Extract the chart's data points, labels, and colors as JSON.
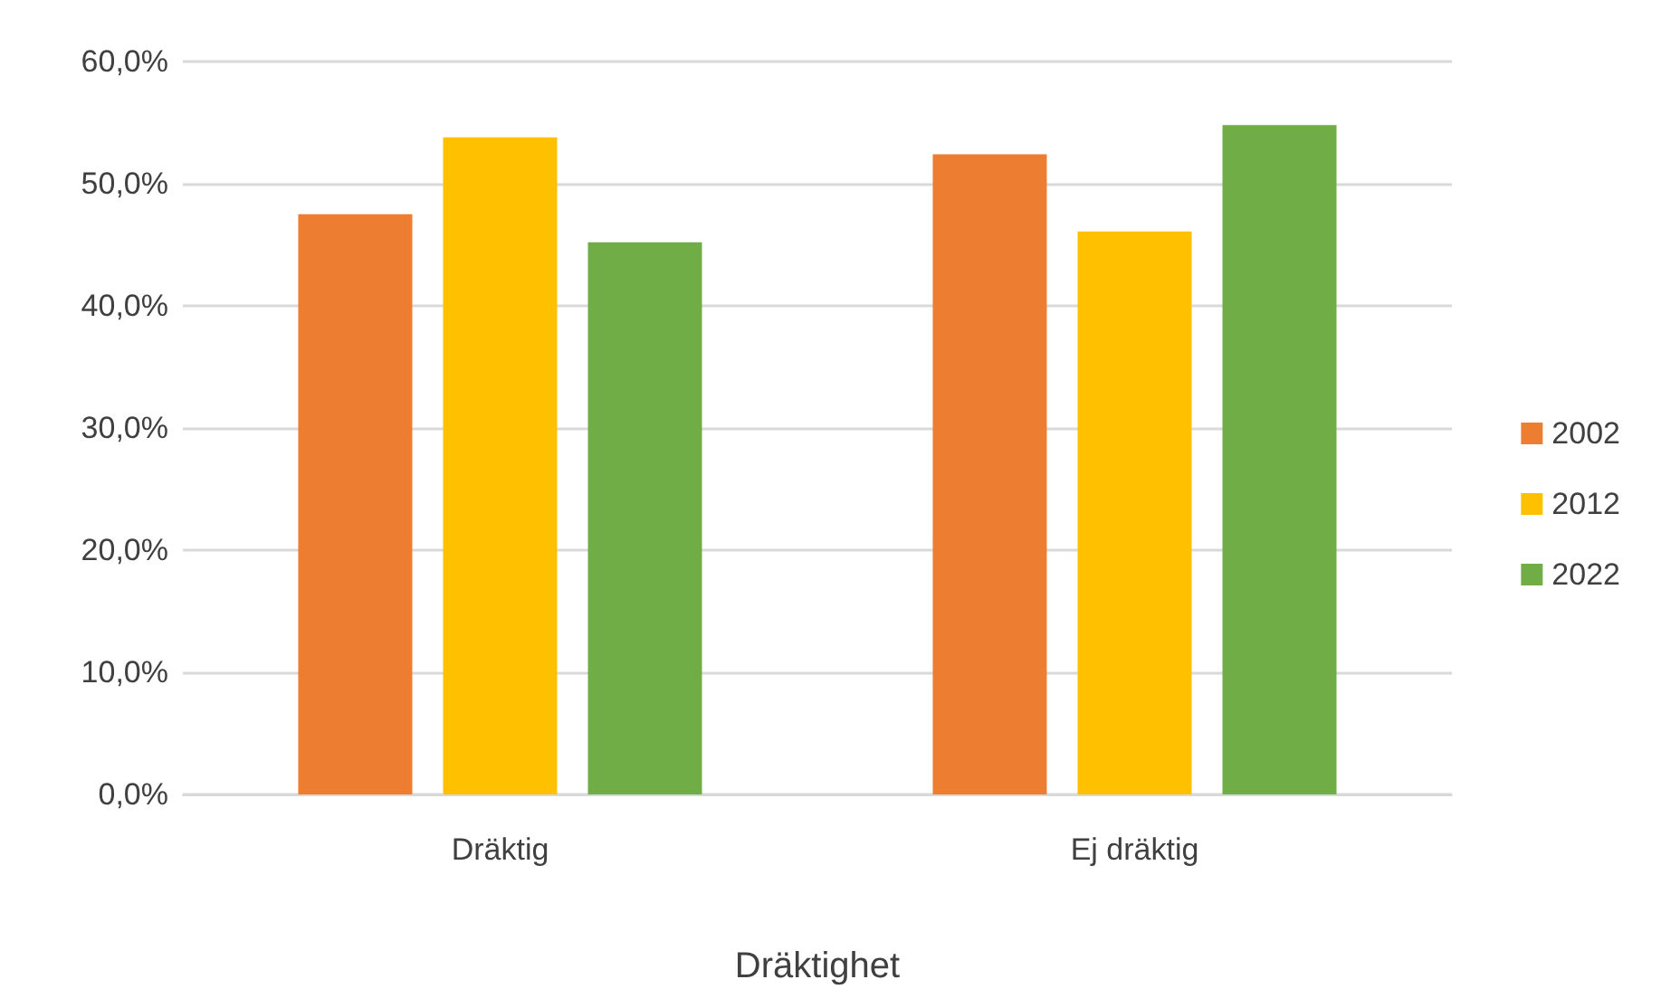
{
  "chart_data": {
    "type": "bar",
    "xlabel": "Dräktighet",
    "categories": [
      "Dräktig",
      "Ej dräktig"
    ],
    "series": [
      {
        "name": "2002",
        "color": "#ed7d31",
        "values": [
          47.5,
          52.4
        ]
      },
      {
        "name": "2012",
        "color": "#ffc000",
        "values": [
          53.8,
          46.1
        ]
      },
      {
        "name": "2022",
        "color": "#70ad47",
        "values": [
          45.2,
          54.8
        ]
      }
    ],
    "ylim": [
      0,
      60
    ],
    "yticks": [
      {
        "value": 0,
        "label": "0,0%"
      },
      {
        "value": 10,
        "label": "10,0%"
      },
      {
        "value": 20,
        "label": "20,0%"
      },
      {
        "value": 30,
        "label": "30,0%"
      },
      {
        "value": 40,
        "label": "40,0%"
      },
      {
        "value": 50,
        "label": "50,0%"
      },
      {
        "value": 60,
        "label": "60,0%"
      }
    ],
    "grid": true,
    "legend": "right"
  }
}
